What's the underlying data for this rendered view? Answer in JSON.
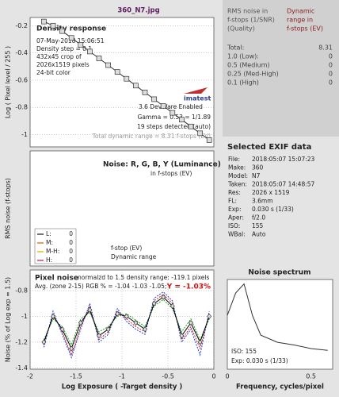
{
  "file_title": "360_N7.jpg",
  "chart_data": [
    {
      "type": "line",
      "title": "Density response",
      "ylabel": "Log ( Pixel level / 255 )",
      "annotations": [
        "07-May-2018 15:06:51",
        "Density step = 0.1",
        "432x45 crop of",
        "2026x1519 pixels",
        "24-bit color",
        "imatest",
        "3.6 DevWare Enabled",
        "Gamma = 0.53 = 1/1.89",
        "19 steps detected (auto)",
        "Total dynamic range = 8.31 f-stops (EV)"
      ],
      "x": [
        -1.85,
        -1.75,
        -1.65,
        -1.55,
        -1.45,
        -1.35,
        -1.25,
        -1.15,
        -1.05,
        -0.95,
        -0.85,
        -0.75,
        -0.65,
        -0.55,
        -0.45,
        -0.35,
        -0.25,
        -0.15,
        -0.05
      ],
      "values": [
        -0.17,
        -0.2,
        -0.24,
        -0.29,
        -0.34,
        -0.39,
        -0.44,
        -0.49,
        -0.54,
        -0.59,
        -0.64,
        -0.69,
        -0.74,
        -0.79,
        -0.84,
        -0.89,
        -0.94,
        -0.99,
        -1.04
      ],
      "color": "#333333",
      "xlim": [
        -2,
        0
      ],
      "ylim": [
        -1.09,
        -0.14
      ],
      "yticks": [
        -0.2,
        -0.4,
        -0.6,
        -0.8,
        -1
      ],
      "grid": true
    },
    {
      "type": "line",
      "title": "Noise: R, G, B, Y (Luminance)",
      "subtitle": "in f-stops (EV)",
      "ylabel": "RMS noise (f-stops)",
      "legend": [
        {
          "name": "L:",
          "value": 0,
          "color": "#444444"
        },
        {
          "name": "M:",
          "value": 0,
          "color": "#e08020"
        },
        {
          "name": "M-H:",
          "value": 0,
          "color": "#e0c020"
        },
        {
          "name": "H:",
          "value": 0,
          "color": "#d04080"
        }
      ],
      "annotations": [
        "f-stop (EV)",
        "Dynamic range"
      ]
    },
    {
      "type": "line",
      "title": "Pixel noise",
      "subtitle": "normalzd to 1.5 density range: -119.1 pixels",
      "annotations": [
        "Avg. (zone 2-15) RGB % = -1.04 -1.03 -1.05;",
        "Y = -1.03%"
      ],
      "xlabel": "Log Exposure ( -Target density )",
      "ylabel": "Noise (% of Log exp = 1.5)",
      "x": [
        -1.85,
        -1.75,
        -1.65,
        -1.55,
        -1.45,
        -1.35,
        -1.25,
        -1.15,
        -1.05,
        -0.95,
        -0.85,
        -0.75,
        -0.65,
        -0.55,
        -0.45,
        -0.35,
        -0.25,
        -0.15,
        -0.05
      ],
      "series": [
        {
          "color": "#d02020",
          "values": [
            -1.22,
            -0.98,
            -1.12,
            -1.3,
            -1.08,
            -0.92,
            -1.18,
            -1.12,
            -0.96,
            -1.02,
            -1.08,
            -1.12,
            -0.88,
            -0.83,
            -0.9,
            -1.18,
            -1.08,
            -1.25,
            -0.98
          ]
        },
        {
          "color": "#20a020",
          "values": [
            -1.18,
            -1.02,
            -1.08,
            -1.22,
            -1.02,
            -0.97,
            -1.12,
            -1.08,
            -1.0,
            -0.98,
            -1.03,
            -1.08,
            -0.92,
            -0.87,
            -0.94,
            -1.12,
            -1.02,
            -1.18,
            -1.02
          ]
        },
        {
          "color": "#2040d0",
          "values": [
            -1.24,
            -0.96,
            -1.14,
            -1.32,
            -1.1,
            -0.9,
            -1.2,
            -1.14,
            -0.94,
            -1.04,
            -1.1,
            -1.14,
            -0.86,
            -0.81,
            -0.88,
            -1.2,
            -1.1,
            -1.3,
            -0.96
          ]
        },
        {
          "color": "#000000",
          "values": [
            -1.2,
            -1.0,
            -1.1,
            -1.25,
            -1.05,
            -0.95,
            -1.15,
            -1.1,
            -0.98,
            -1.0,
            -1.05,
            -1.1,
            -0.9,
            -0.85,
            -0.92,
            -1.15,
            -1.05,
            -1.2,
            -1.0
          ]
        }
      ],
      "xlim": [
        -2,
        0
      ],
      "ylim": [
        -1.41,
        -0.64
      ],
      "xticks": [
        -2,
        -1.5,
        -1,
        -0.5,
        0
      ],
      "yticks": [
        -0.8,
        -1,
        -1.2,
        -1.4
      ],
      "grid": true
    },
    {
      "type": "line",
      "title": "Noise spectrum",
      "xlabel": "Frequency, cycles/pixel",
      "annotations": [
        "ISO:  155",
        "Exp:  0.030 s  (1/33)"
      ],
      "x": [
        0,
        0.05,
        0.1,
        0.15,
        0.2,
        0.3,
        0.4,
        0.5,
        0.6
      ],
      "values": [
        0.6,
        0.85,
        0.95,
        0.6,
        0.38,
        0.3,
        0.27,
        0.23,
        0.21
      ],
      "color": "#333333",
      "xlim": [
        0,
        0.63
      ],
      "ylim": [
        0,
        1
      ],
      "xticks": [
        0,
        0.5
      ],
      "grid": false
    }
  ],
  "rms_table": {
    "header": [
      [
        "RMS noise in",
        "f-stops (1/SNR)",
        "(Quality)"
      ],
      [
        "Dynamic",
        "range in",
        "f-stops (EV)"
      ]
    ],
    "rows": [
      [
        "Total:",
        8.31
      ],
      [
        "1.0  (Low):",
        0
      ],
      [
        "0.5  (Medium)",
        0
      ],
      [
        "0.25 (Med-High)",
        0
      ],
      [
        "0.1  (High)",
        0
      ]
    ]
  },
  "exif": {
    "title": "Selected EXIF data",
    "rows": [
      [
        "File:",
        "2018:05:07 15:07:23"
      ],
      [
        "Make:",
        "360"
      ],
      [
        "Model:",
        "N7"
      ],
      [
        "Taken:",
        "2018:05:07 14:48:57"
      ],
      [
        "Res:",
        "2026 x 1519"
      ],
      [
        "FL:",
        "3.6mm"
      ],
      [
        "Exp:",
        "0.030 s  (1/33)"
      ],
      [
        "Aper:",
        "f/2.0"
      ],
      [
        "ISO:",
        "155"
      ],
      [
        "WBal:",
        "Auto"
      ]
    ]
  }
}
